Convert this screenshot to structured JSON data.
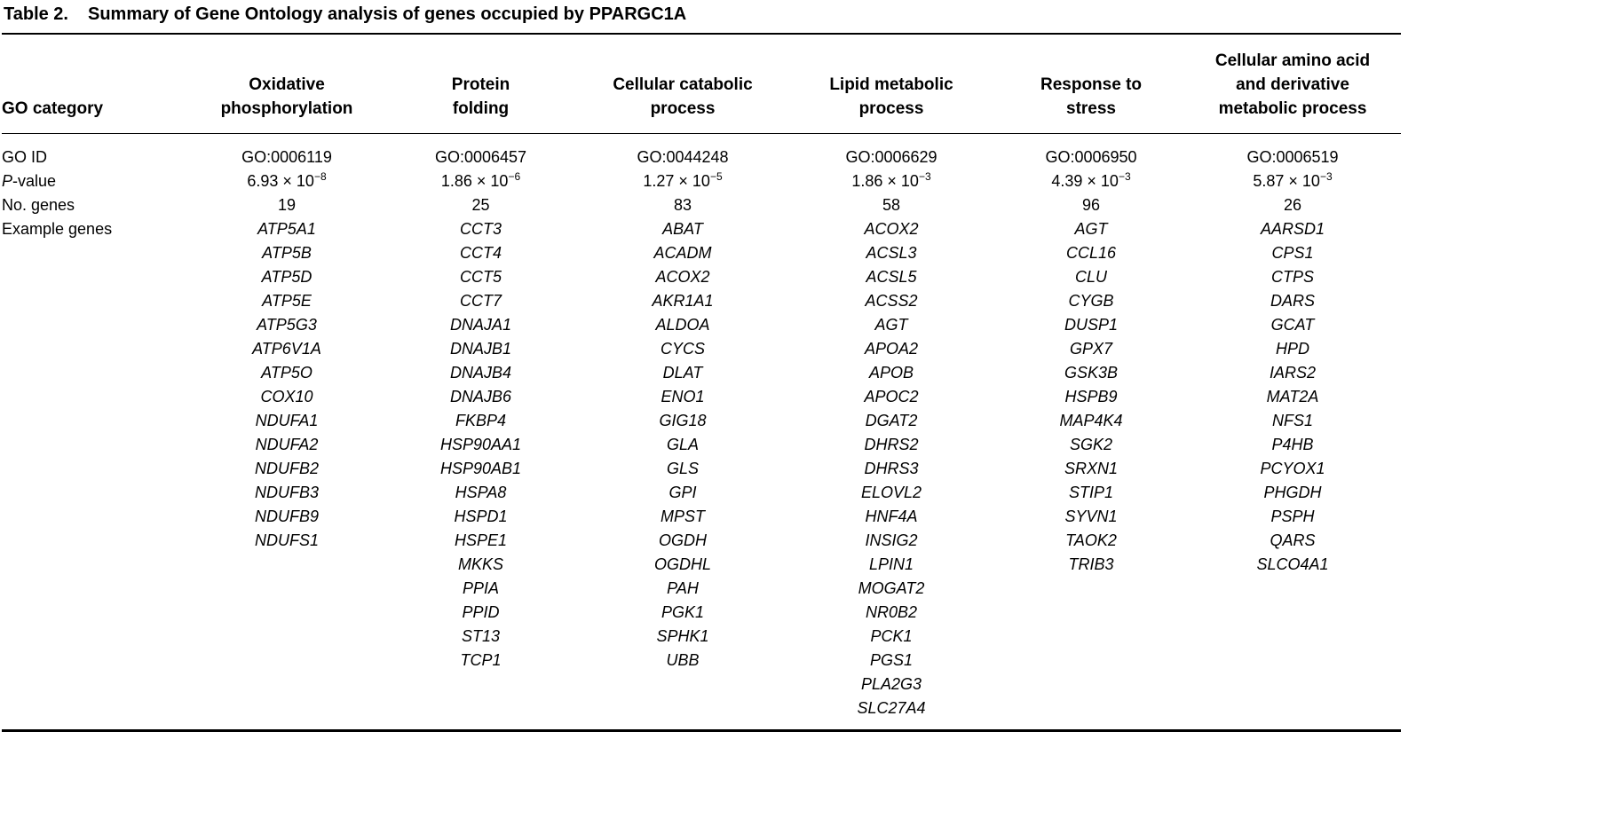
{
  "table": {
    "label": "Table 2.",
    "title": "Summary of Gene Ontology analysis of genes occupied by PPARGC1A",
    "corner_header": "GO category",
    "row_labels": {
      "go_id": "GO ID",
      "p_italic": "P",
      "p_rest": "-value",
      "num_genes": "No. genes",
      "example_genes": "Example genes"
    },
    "columns": [
      {
        "header_lines": [
          "Oxidative",
          "phosphorylation"
        ],
        "go_id": "GO:0006119",
        "p_mantissa": "6.93 × 10",
        "p_exponent": "−8",
        "num_genes": "19",
        "genes": [
          "ATP5A1",
          "ATP5B",
          "ATP5D",
          "ATP5E",
          "ATP5G3",
          "ATP6V1A",
          "ATP5O",
          "COX10",
          "NDUFA1",
          "NDUFA2",
          "NDUFB2",
          "NDUFB3",
          "NDUFB9",
          "NDUFS1"
        ]
      },
      {
        "header_lines": [
          "Protein",
          "folding"
        ],
        "go_id": "GO:0006457",
        "p_mantissa": "1.86 × 10",
        "p_exponent": "−6",
        "num_genes": "25",
        "genes": [
          "CCT3",
          "CCT4",
          "CCT5",
          "CCT7",
          "DNAJA1",
          "DNAJB1",
          "DNAJB4",
          "DNAJB6",
          "FKBP4",
          "HSP90AA1",
          "HSP90AB1",
          "HSPA8",
          "HSPD1",
          "HSPE1",
          "MKKS",
          "PPIA",
          "PPID",
          "ST13",
          "TCP1"
        ]
      },
      {
        "header_lines": [
          "Cellular catabolic",
          "process"
        ],
        "go_id": "GO:0044248",
        "p_mantissa": "1.27 × 10",
        "p_exponent": "−5",
        "num_genes": "83",
        "genes": [
          "ABAT",
          "ACADM",
          "ACOX2",
          "AKR1A1",
          "ALDOA",
          "CYCS",
          "DLAT",
          "ENO1",
          "GIG18",
          "GLA",
          "GLS",
          "GPI",
          "MPST",
          "OGDH",
          "OGDHL",
          "PAH",
          "PGK1",
          "SPHK1",
          "UBB"
        ]
      },
      {
        "header_lines": [
          "Lipid metabolic",
          "process"
        ],
        "go_id": "GO:0006629",
        "p_mantissa": "1.86 × 10",
        "p_exponent": "−3",
        "num_genes": "58",
        "genes": [
          "ACOX2",
          "ACSL3",
          "ACSL5",
          "ACSS2",
          "AGT",
          "APOA2",
          "APOB",
          "APOC2",
          "DGAT2",
          "DHRS2",
          "DHRS3",
          "ELOVL2",
          "HNF4A",
          "INSIG2",
          "LPIN1",
          "MOGAT2",
          "NR0B2",
          "PCK1",
          "PGS1",
          "PLA2G3",
          "SLC27A4"
        ]
      },
      {
        "header_lines": [
          "Response to",
          "stress"
        ],
        "go_id": "GO:0006950",
        "p_mantissa": "4.39 × 10",
        "p_exponent": "−3",
        "num_genes": "96",
        "genes": [
          "AGT",
          "CCL16",
          "CLU",
          "CYGB",
          "DUSP1",
          "GPX7",
          "GSK3B",
          "HSPB9",
          "MAP4K4",
          "SGK2",
          "SRXN1",
          "STIP1",
          "SYVN1",
          "TAOK2",
          "TRIB3"
        ]
      },
      {
        "header_lines": [
          "Cellular amino acid",
          "and derivative",
          "metabolic process"
        ],
        "go_id": "GO:0006519",
        "p_mantissa": "5.87 × 10",
        "p_exponent": "−3",
        "num_genes": "26",
        "genes": [
          "AARSD1",
          "CPS1",
          "CTPS",
          "DARS",
          "GCAT",
          "HPD",
          "IARS2",
          "MAT2A",
          "NFS1",
          "P4HB",
          "PCYOX1",
          "PHGDH",
          "PSPH",
          "QARS",
          "SLCO4A1"
        ]
      }
    ]
  }
}
